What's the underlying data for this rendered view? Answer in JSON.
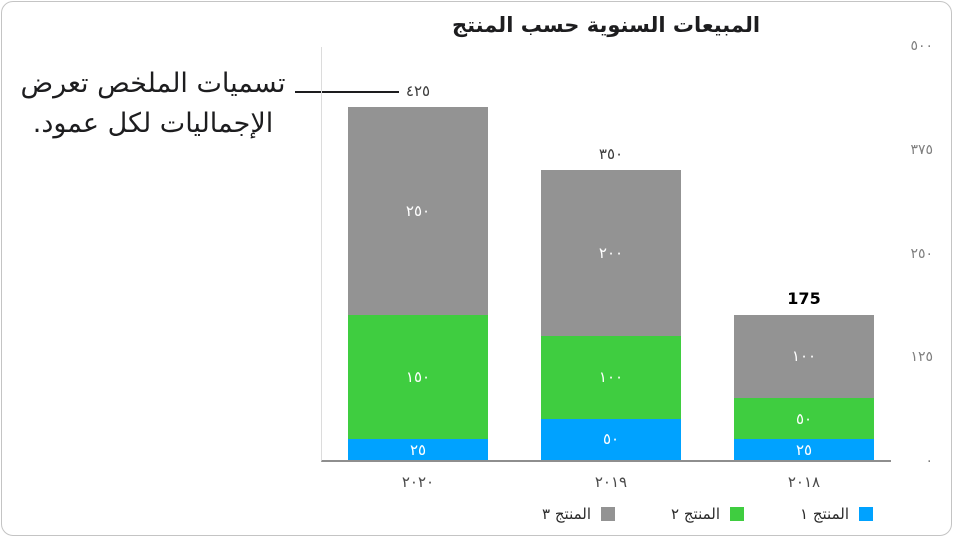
{
  "callout": {
    "line1": "تسميات الملخص تعرض",
    "line2": "الإجماليات لكل عمود."
  },
  "chart_data": {
    "type": "bar",
    "stacked": true,
    "direction": "rtl",
    "title": "المبيعات السنوية حسب المنتج",
    "categories": [
      "٢٠٢٠",
      "٢٠١٩",
      "٢٠١٨"
    ],
    "series": [
      {
        "name": "المنتج ١",
        "color": "#00a2ff",
        "values": [
          25,
          50,
          25
        ],
        "value_labels": [
          "٢٥",
          "٥٠",
          "٢٥"
        ]
      },
      {
        "name": "المنتج ٢",
        "color": "#3fcd40",
        "values": [
          150,
          100,
          50
        ],
        "value_labels": [
          "١٥٠",
          "١٠٠",
          "٥٠"
        ]
      },
      {
        "name": "المنتج ٣",
        "color": "#939393",
        "values": [
          250,
          200,
          100
        ],
        "value_labels": [
          "٢٥٠",
          "٢٠٠",
          "١٠٠"
        ]
      }
    ],
    "totals": [
      425,
      350,
      175
    ],
    "total_labels": [
      "٤٢٥",
      "٣٥٠",
      "175"
    ],
    "total_label_bold": [
      false,
      false,
      true
    ],
    "y_ticks": [
      {
        "value": 0,
        "label": "٠"
      },
      {
        "value": 125,
        "label": "١٢٥"
      },
      {
        "value": 250,
        "label": "٢٥٠"
      },
      {
        "value": 375,
        "label": "٣٧٥"
      },
      {
        "value": 500,
        "label": "٥٠٠"
      }
    ],
    "ylim": [
      0,
      500
    ],
    "grid": false,
    "legend_position": "bottom"
  }
}
